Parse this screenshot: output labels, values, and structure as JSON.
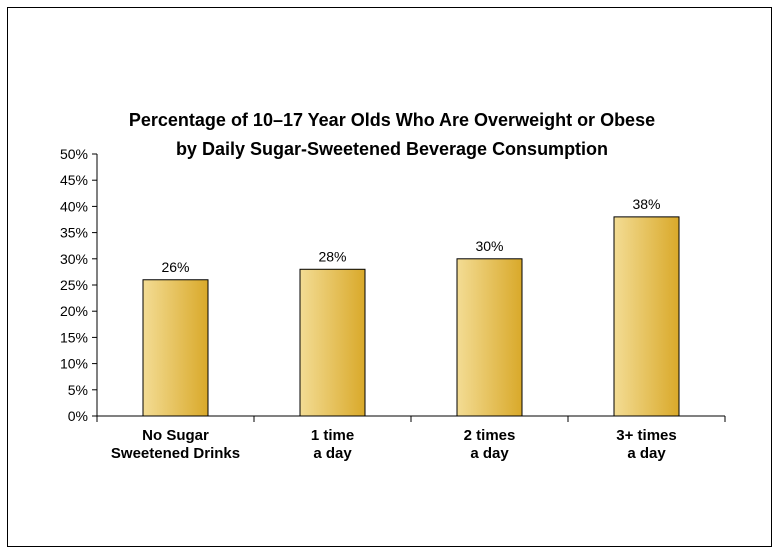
{
  "chart_data": {
    "type": "bar",
    "title_lines": [
      "Percentage of 10–17 Year Olds Who Are Overweight or Obese",
      "by Daily Sugar-Sweetened Beverage Consumption"
    ],
    "categories": [
      [
        "No Sugar",
        "Sweetened Drinks"
      ],
      [
        "1 time",
        "a day"
      ],
      [
        "2 times",
        "a day"
      ],
      [
        "3+ times",
        "a day"
      ]
    ],
    "values": [
      26,
      28,
      30,
      38
    ],
    "value_labels": [
      "26%",
      "28%",
      "30%",
      "38%"
    ],
    "ylim": [
      0,
      50
    ],
    "yticks": [
      0,
      5,
      10,
      15,
      20,
      25,
      30,
      35,
      40,
      45,
      50
    ],
    "ytick_labels": [
      "0%",
      "5%",
      "10%",
      "15%",
      "20%",
      "25%",
      "30%",
      "35%",
      "40%",
      "45%",
      "50%"
    ],
    "grid": false,
    "legend": "none",
    "bar_color_light": "#f3dc94",
    "bar_color_dark": "#d9a92a",
    "bar_outline": "#000000"
  }
}
